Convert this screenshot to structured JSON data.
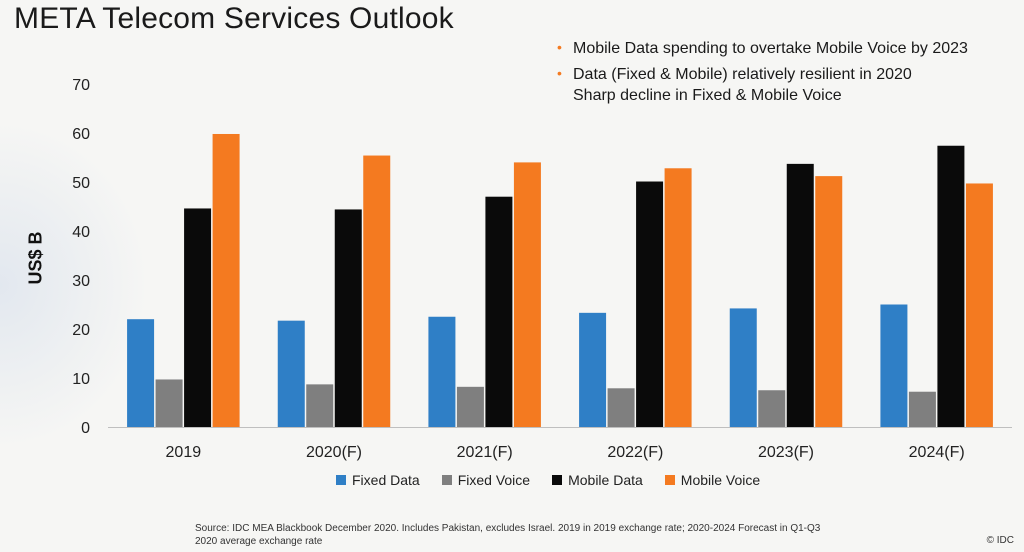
{
  "title": "META Telecom Services Outlook",
  "bullets": [
    {
      "lines": [
        "Mobile Data spending to overtake Mobile Voice by 2023"
      ]
    },
    {
      "lines": [
        "Data (Fixed & Mobile) relatively resilient in 2020",
        "Sharp decline in Fixed & Mobile Voice"
      ]
    }
  ],
  "source_note": "Source: IDC MEA Blackbook December 2020. Includes Pakistan, excludes Israel. 2019 in 2019 exchange rate; 2020-2024 Forecast in Q1-Q3 2020 average exchange rate",
  "copyright": "© IDC",
  "colors": {
    "accent": "#f47a20"
  },
  "chart_data": {
    "type": "bar",
    "title": "",
    "xlabel": "",
    "ylabel": "US$ B",
    "ylim": [
      0,
      70
    ],
    "yticks": [
      0,
      10,
      20,
      30,
      40,
      50,
      60,
      70
    ],
    "grid": false,
    "legend_position": "bottom",
    "categories": [
      "2019",
      "2020(F)",
      "2021(F)",
      "2022(F)",
      "2023(F)",
      "2024(F)"
    ],
    "series": [
      {
        "name": "Fixed Data",
        "color": "#2f7fc6",
        "values": [
          22,
          21.7,
          22.5,
          23.3,
          24.2,
          25
        ]
      },
      {
        "name": "Fixed Voice",
        "color": "#7f7f7f",
        "values": [
          9.7,
          8.7,
          8.2,
          7.9,
          7.5,
          7.2
        ]
      },
      {
        "name": "Mobile Data",
        "color": "#0a0a0a",
        "values": [
          44.6,
          44.4,
          47,
          50.1,
          53.7,
          57.4
        ]
      },
      {
        "name": "Mobile Voice",
        "color": "#f47a20",
        "values": [
          59.8,
          55.4,
          54,
          52.8,
          51.2,
          49.7
        ]
      }
    ]
  }
}
